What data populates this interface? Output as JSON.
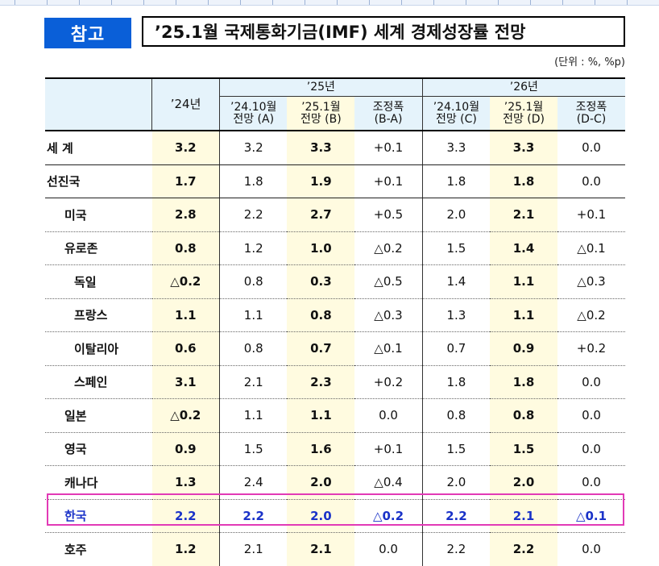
{
  "tag": "참고",
  "title": "’25.1월 국제통화기금(IMF) 세계 경제성장률 전망",
  "unit_note": "(단위 : %, %p)",
  "header": {
    "y24": "’24년",
    "g25": "’25년",
    "g26": "’26년",
    "a_line1": "’24.10월",
    "a_line2": "전망 (A)",
    "b_line1": "’25.1월",
    "b_line2": "전망 (B)",
    "ba_line1": "조정폭",
    "ba_line2": "(B-A)",
    "c_line1": "’24.10월",
    "c_line2": "전망 (C)",
    "d_line1": "’25.1월",
    "d_line2": "전망 (D)",
    "dc_line1": "조정폭",
    "dc_line2": "(D-C)"
  },
  "rows": [
    {
      "name": "세  계",
      "y24": "3.2",
      "a": "3.2",
      "b": "3.3",
      "ba": "+0.1",
      "c": "3.3",
      "d": "3.3",
      "dc": "0.0"
    },
    {
      "name": "선진국",
      "y24": "1.7",
      "a": "1.8",
      "b": "1.9",
      "ba": "+0.1",
      "c": "1.8",
      "d": "1.8",
      "dc": "0.0"
    },
    {
      "name": "미국",
      "y24": "2.8",
      "a": "2.2",
      "b": "2.7",
      "ba": "+0.5",
      "c": "2.0",
      "d": "2.1",
      "dc": "+0.1"
    },
    {
      "name": "유로존",
      "y24": "0.8",
      "a": "1.2",
      "b": "1.0",
      "ba": "△0.2",
      "c": "1.5",
      "d": "1.4",
      "dc": "△0.1"
    },
    {
      "name": "독일",
      "y24": "△0.2",
      "a": "0.8",
      "b": "0.3",
      "ba": "△0.5",
      "c": "1.4",
      "d": "1.1",
      "dc": "△0.3"
    },
    {
      "name": "프랑스",
      "y24": "1.1",
      "a": "1.1",
      "b": "0.8",
      "ba": "△0.3",
      "c": "1.3",
      "d": "1.1",
      "dc": "△0.2"
    },
    {
      "name": "이탈리아",
      "y24": "0.6",
      "a": "0.8",
      "b": "0.7",
      "ba": "△0.1",
      "c": "0.7",
      "d": "0.9",
      "dc": "+0.2"
    },
    {
      "name": "스페인",
      "y24": "3.1",
      "a": "2.1",
      "b": "2.3",
      "ba": "+0.2",
      "c": "1.8",
      "d": "1.8",
      "dc": "0.0"
    },
    {
      "name": "일본",
      "y24": "△0.2",
      "a": "1.1",
      "b": "1.1",
      "ba": "0.0",
      "c": "0.8",
      "d": "0.8",
      "dc": "0.0"
    },
    {
      "name": "영국",
      "y24": "0.9",
      "a": "1.5",
      "b": "1.6",
      "ba": "+0.1",
      "c": "1.5",
      "d": "1.5",
      "dc": "0.0"
    },
    {
      "name": "캐나다",
      "y24": "1.3",
      "a": "2.4",
      "b": "2.0",
      "ba": "△0.4",
      "c": "2.0",
      "d": "2.0",
      "dc": "0.0"
    },
    {
      "name": "한국",
      "y24": "2.2",
      "a": "2.2",
      "b": "2.0",
      "ba": "△0.2",
      "c": "2.2",
      "d": "2.1",
      "dc": "△0.1"
    },
    {
      "name": "호주",
      "y24": "1.2",
      "a": "2.1",
      "b": "2.1",
      "ba": "0.0",
      "c": "2.2",
      "d": "2.2",
      "dc": "0.0"
    }
  ],
  "colors": {
    "tag_bg": "#0a5fd8",
    "header_bg": "#e5f3fb",
    "highlight_col": "#fffbe0",
    "korea_text": "#1a32c8",
    "korea_box": "#e23ab6"
  }
}
